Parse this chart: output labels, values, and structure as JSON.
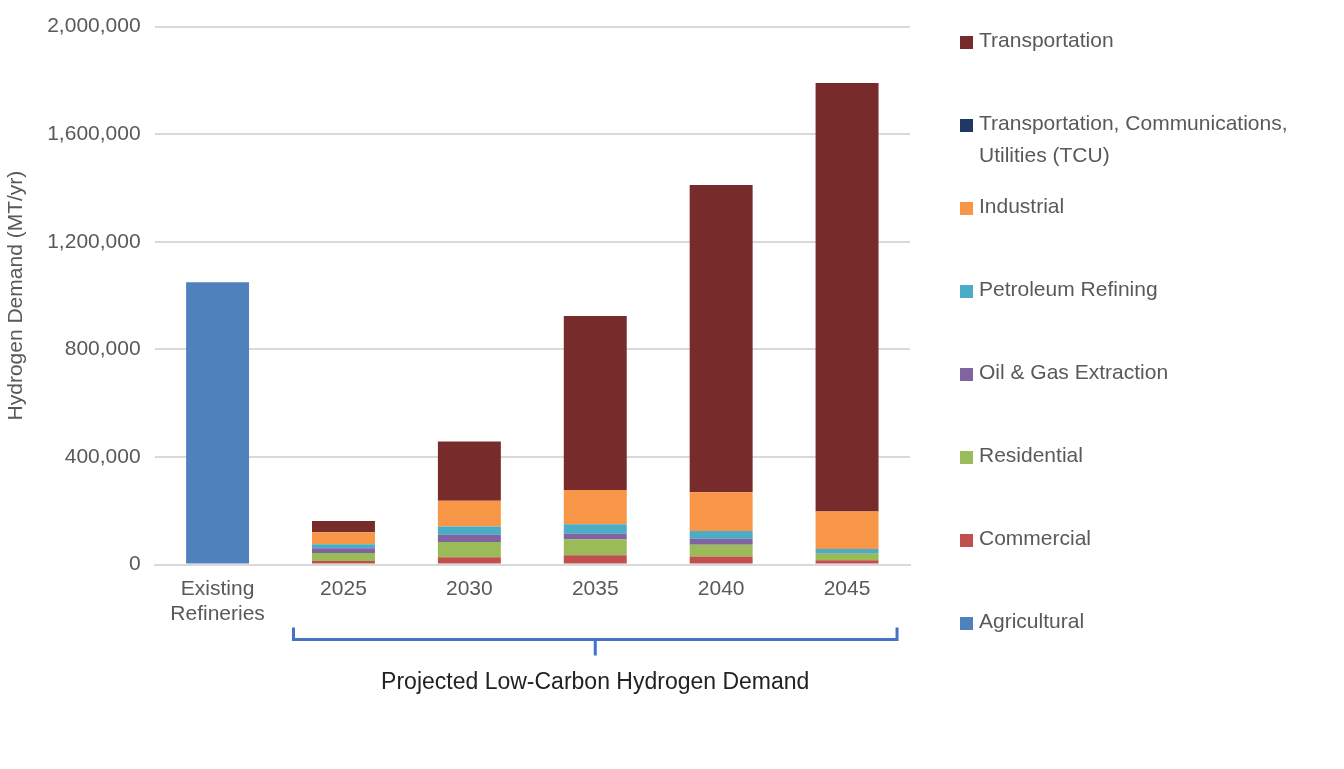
{
  "chart_data": {
    "type": "bar",
    "stacked": true,
    "ylabel": "Hydrogen Demand (MT/yr)",
    "categories": [
      "Existing Refineries",
      "2025",
      "2030",
      "2035",
      "2040",
      "2045"
    ],
    "series": [
      {
        "color": "#4f81bd",
        "values": [
          1050000,
          null,
          null,
          null,
          null,
          null
        ]
      },
      {
        "name": "Agricultural",
        "color": "#4f81bd",
        "values": [
          null,
          0,
          0,
          0,
          0,
          0
        ]
      },
      {
        "name": "Commercial",
        "color": "#c0504d",
        "values": [
          null,
          13000,
          27000,
          35000,
          30000,
          16000
        ]
      },
      {
        "name": "Residential",
        "color": "#9bbb59",
        "values": [
          null,
          30000,
          57000,
          58000,
          44000,
          24000
        ]
      },
      {
        "name": "Oil & Gas Extraction",
        "color": "#8064a2",
        "values": [
          null,
          18000,
          27000,
          22000,
          22000,
          0
        ]
      },
      {
        "name": "Petroleum Refining",
        "color": "#4bacc6",
        "values": [
          null,
          15000,
          31000,
          35000,
          29000,
          18000
        ]
      },
      {
        "name": "Industrial",
        "color": "#f79646",
        "values": [
          null,
          44000,
          95000,
          127000,
          144000,
          139000
        ]
      },
      {
        "name": "Transportation, Communications, Utilities (TCU)",
        "color": "#1f3864",
        "values": [
          null,
          0,
          0,
          0,
          0,
          0
        ]
      },
      {
        "name": "Transportation",
        "color": "#772b2b",
        "values": [
          null,
          42000,
          221000,
          647000,
          1142000,
          1593000
        ]
      }
    ],
    "ylim": [
      0,
      2000000
    ],
    "yticks": [
      0,
      {
        "value": 400000,
        "label": "400,000"
      },
      {
        "value": 800000,
        "label": "800,000"
      },
      {
        "value": 1200000,
        "label": "1,200,000"
      },
      {
        "value": 1600000,
        "label": "1,600,000"
      },
      {
        "value": 2000000,
        "label": "2,000,000"
      }
    ],
    "grid": "y",
    "legend": "right",
    "annotations": [
      "Projected Low-Carbon Hydrogen Demand"
    ]
  }
}
